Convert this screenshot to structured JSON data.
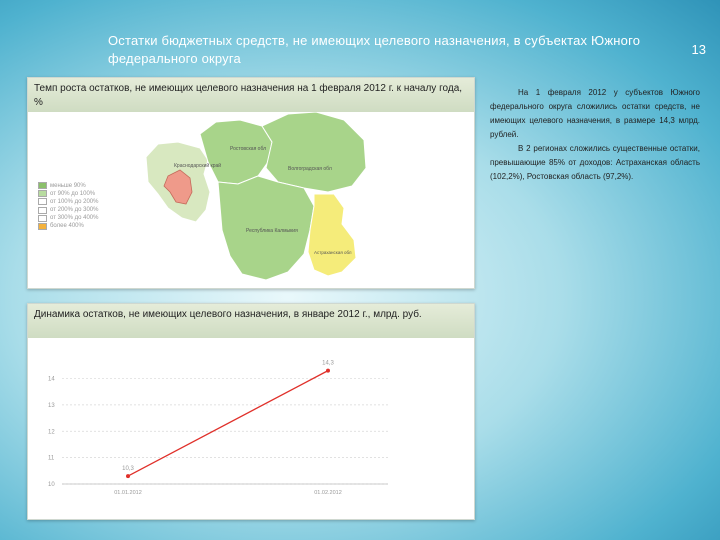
{
  "slide": {
    "title": "Остатки бюджетных средств, не имеющих целевого назначения, в субъектах Южного федерального округа",
    "page_number": "13"
  },
  "map_panel": {
    "header": "Темп роста остатков, не имеющих целевого назначения на 1 февраля 2012 г. к началу года, %",
    "legend": [
      {
        "label": "меньше 90%",
        "color": "#8bc06a"
      },
      {
        "label": "от 90% до 100%",
        "color": "#b8dca0"
      },
      {
        "label": "от 100% до 200%",
        "color": "#ffffff"
      },
      {
        "label": "от 200% до 300%",
        "color": "#ffffff"
      },
      {
        "label": "от 300% до 400%",
        "color": "#ffffff"
      },
      {
        "label": "более 400%",
        "color": "#f4b23c"
      }
    ],
    "regions": [
      {
        "name": "Краснодарский край",
        "color": "#d8e8c0"
      },
      {
        "name": "Республика Адыгея",
        "color": "#ef9a8a"
      },
      {
        "name": "Ростовская обл",
        "color": "#a8d48a"
      },
      {
        "name": "Волгоградская обл",
        "color": "#a8d48a"
      },
      {
        "name": "Республика Калмыкия",
        "color": "#a8d48a"
      },
      {
        "name": "Астраханская обл",
        "color": "#f5ec7a"
      }
    ]
  },
  "chart_panel": {
    "header": "Динамика остатков, не имеющих целевого назначения, в январе 2012 г., млрд. руб."
  },
  "chart_data": {
    "type": "line",
    "title": "Динамика остатков, не имеющих целевого назначения, в январе 2012 г., млрд. руб.",
    "x": [
      "01.01.2012",
      "01.02.2012"
    ],
    "series": [
      {
        "values": [
          10.3,
          14.3
        ],
        "color": "#e0302a"
      }
    ],
    "data_labels": [
      "10,3",
      "14,3"
    ],
    "yticks": [
      "10",
      "11",
      "12",
      "13",
      "14"
    ],
    "ylim": [
      10,
      14.4
    ],
    "grid": true
  },
  "text": {
    "paragraph1": "На 1 февраля 2012 у субъектов Южного федерального округа сложились остатки средств, не имеющих целевого назначения, в размере 14,3 млрд. рублей.",
    "paragraph2": "В 2 регионах сложились существенные остатки, превышающие 85% от доходов: Астраханская область (102,2%), Ростовская область (97,2%)."
  }
}
